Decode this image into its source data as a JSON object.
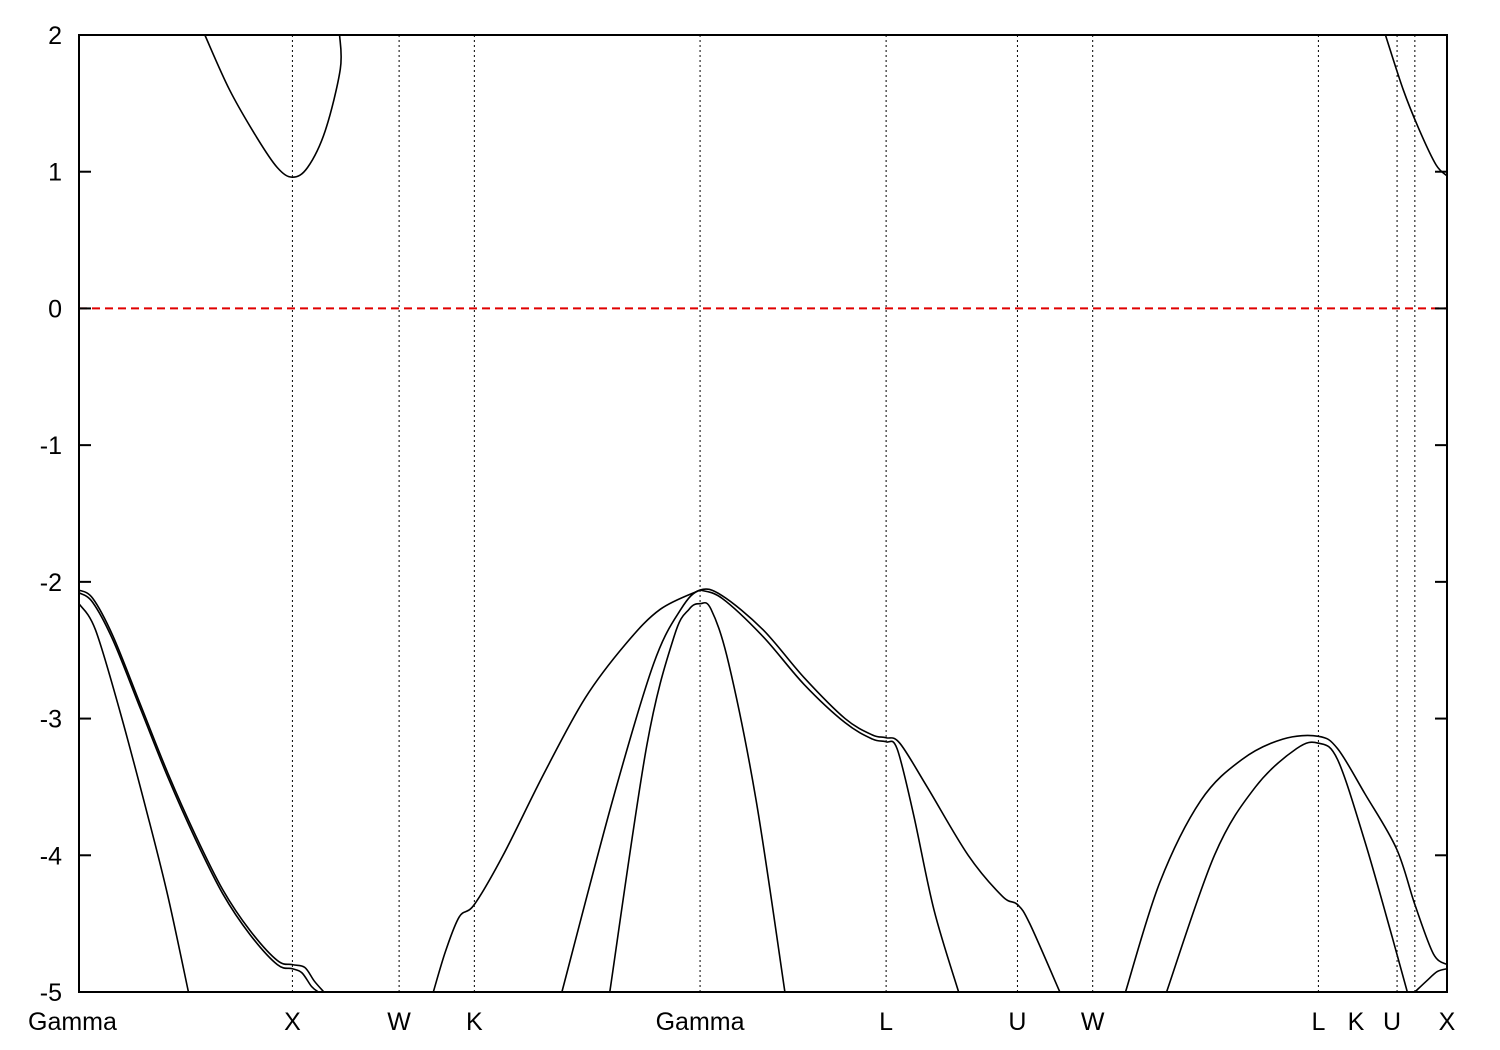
{
  "chart_data": {
    "type": "line",
    "title": "",
    "xlabel": "",
    "ylabel": "",
    "ylim": [
      -5,
      2
    ],
    "yticks": [
      2,
      1,
      0,
      -1,
      -2,
      -3,
      -4,
      -5
    ],
    "ytick_labels": [
      "2",
      "1",
      "0",
      "-1",
      "-2",
      "-3",
      "-4",
      "-5"
    ],
    "xlim": [
      0,
      1
    ],
    "kpoints": [
      {
        "label": "Gamma",
        "x": 0.0
      },
      {
        "label": "X",
        "x": 0.156
      },
      {
        "label": "W",
        "x": 0.234
      },
      {
        "label": "K",
        "x": 0.289
      },
      {
        "label": "Gamma",
        "x": 0.454
      },
      {
        "label": "L",
        "x": 0.59
      },
      {
        "label": "U",
        "x": 0.686
      },
      {
        "label": "W",
        "x": 0.741
      },
      {
        "label": "L",
        "x": 0.906
      },
      {
        "label": "K",
        "x": 0.9635
      },
      {
        "label": "U",
        "x": 0.9765
      },
      {
        "label": "X",
        "x": 1.0
      }
    ],
    "fermi_level": {
      "y": 0,
      "color": "#e00000",
      "style": "dashed"
    },
    "line_color": "#000000",
    "series": [
      {
        "values": [
          [
            0.092,
            2.0
          ],
          [
            0.11,
            1.6
          ],
          [
            0.13,
            1.25
          ],
          [
            0.145,
            1.03
          ],
          [
            0.156,
            0.96
          ],
          [
            0.167,
            1.03
          ],
          [
            0.18,
            1.3
          ],
          [
            0.191,
            1.75
          ],
          [
            0.1905,
            2.0
          ]
        ]
      },
      {
        "values": [
          [
            0.955,
            2.0
          ],
          [
            0.968,
            1.6
          ],
          [
            0.98,
            1.3
          ],
          [
            0.992,
            1.05
          ],
          [
            1.0,
            0.97
          ]
        ]
      },
      {
        "values": [
          [
            0.0,
            -2.06
          ],
          [
            0.01,
            -2.12
          ],
          [
            0.025,
            -2.4
          ],
          [
            0.045,
            -2.9
          ],
          [
            0.065,
            -3.4
          ],
          [
            0.085,
            -3.85
          ],
          [
            0.105,
            -4.25
          ],
          [
            0.125,
            -4.55
          ],
          [
            0.145,
            -4.77
          ],
          [
            0.156,
            -4.8
          ],
          [
            0.165,
            -4.82
          ],
          [
            0.172,
            -4.92
          ],
          [
            0.179,
            -5.0
          ]
        ]
      },
      {
        "values": [
          [
            0.0,
            -2.08
          ],
          [
            0.01,
            -2.15
          ],
          [
            0.025,
            -2.43
          ],
          [
            0.045,
            -2.93
          ],
          [
            0.065,
            -3.43
          ],
          [
            0.085,
            -3.88
          ],
          [
            0.105,
            -4.28
          ],
          [
            0.125,
            -4.58
          ],
          [
            0.145,
            -4.8
          ],
          [
            0.156,
            -4.83
          ],
          [
            0.163,
            -4.86
          ],
          [
            0.17,
            -4.96
          ],
          [
            0.175,
            -5.0
          ]
        ]
      },
      {
        "values": [
          [
            0.0,
            -2.16
          ],
          [
            0.012,
            -2.35
          ],
          [
            0.03,
            -2.95
          ],
          [
            0.05,
            -3.7
          ],
          [
            0.065,
            -4.3
          ],
          [
            0.08,
            -5.0
          ]
        ]
      },
      {
        "values": [
          [
            0.259,
            -5.0
          ],
          [
            0.268,
            -4.7
          ],
          [
            0.278,
            -4.45
          ],
          [
            0.289,
            -4.36
          ],
          [
            0.31,
            -4.0
          ],
          [
            0.34,
            -3.4
          ],
          [
            0.37,
            -2.85
          ],
          [
            0.4,
            -2.45
          ],
          [
            0.425,
            -2.2
          ],
          [
            0.454,
            -2.06
          ]
        ]
      },
      {
        "values": [
          [
            0.353,
            -5.0
          ],
          [
            0.39,
            -3.6
          ],
          [
            0.42,
            -2.6
          ],
          [
            0.44,
            -2.2
          ],
          [
            0.454,
            -2.06
          ],
          [
            0.47,
            -2.1
          ],
          [
            0.5,
            -2.35
          ],
          [
            0.53,
            -2.7
          ],
          [
            0.56,
            -3.0
          ],
          [
            0.58,
            -3.12
          ],
          [
            0.59,
            -3.14
          ],
          [
            0.6,
            -3.18
          ],
          [
            0.62,
            -3.5
          ],
          [
            0.65,
            -4.0
          ],
          [
            0.675,
            -4.3
          ],
          [
            0.686,
            -4.36
          ],
          [
            0.695,
            -4.5
          ],
          [
            0.717,
            -5.0
          ]
        ]
      },
      {
        "values": [
          [
            0.388,
            -5.0
          ],
          [
            0.415,
            -3.2
          ],
          [
            0.435,
            -2.4
          ],
          [
            0.446,
            -2.2
          ],
          [
            0.454,
            -2.16
          ],
          [
            0.462,
            -2.2
          ],
          [
            0.475,
            -2.6
          ],
          [
            0.495,
            -3.6
          ],
          [
            0.516,
            -5.0
          ]
        ]
      },
      {
        "values": [
          [
            0.454,
            -2.06
          ],
          [
            0.47,
            -2.12
          ],
          [
            0.5,
            -2.4
          ],
          [
            0.53,
            -2.75
          ],
          [
            0.56,
            -3.03
          ],
          [
            0.58,
            -3.15
          ],
          [
            0.59,
            -3.17
          ],
          [
            0.598,
            -3.22
          ],
          [
            0.61,
            -3.7
          ],
          [
            0.625,
            -4.4
          ],
          [
            0.643,
            -5.0
          ]
        ]
      },
      {
        "values": [
          [
            0.765,
            -5.0
          ],
          [
            0.79,
            -4.2
          ],
          [
            0.82,
            -3.6
          ],
          [
            0.85,
            -3.3
          ],
          [
            0.88,
            -3.15
          ],
          [
            0.906,
            -3.13
          ],
          [
            0.92,
            -3.22
          ],
          [
            0.94,
            -3.55
          ],
          [
            0.963,
            -3.95
          ],
          [
            0.9765,
            -4.36
          ],
          [
            0.99,
            -4.72
          ],
          [
            1.0,
            -4.8
          ]
        ]
      },
      {
        "values": [
          [
            0.795,
            -5.0
          ],
          [
            0.83,
            -4.0
          ],
          [
            0.86,
            -3.5
          ],
          [
            0.89,
            -3.22
          ],
          [
            0.906,
            -3.18
          ],
          [
            0.92,
            -3.3
          ],
          [
            0.94,
            -3.9
          ],
          [
            0.96,
            -4.6
          ],
          [
            0.971,
            -5.0
          ]
        ]
      },
      {
        "values": [
          [
            0.9765,
            -5.0
          ],
          [
            0.985,
            -4.92
          ],
          [
            0.993,
            -4.85
          ],
          [
            1.0,
            -4.83
          ]
        ]
      }
    ]
  }
}
